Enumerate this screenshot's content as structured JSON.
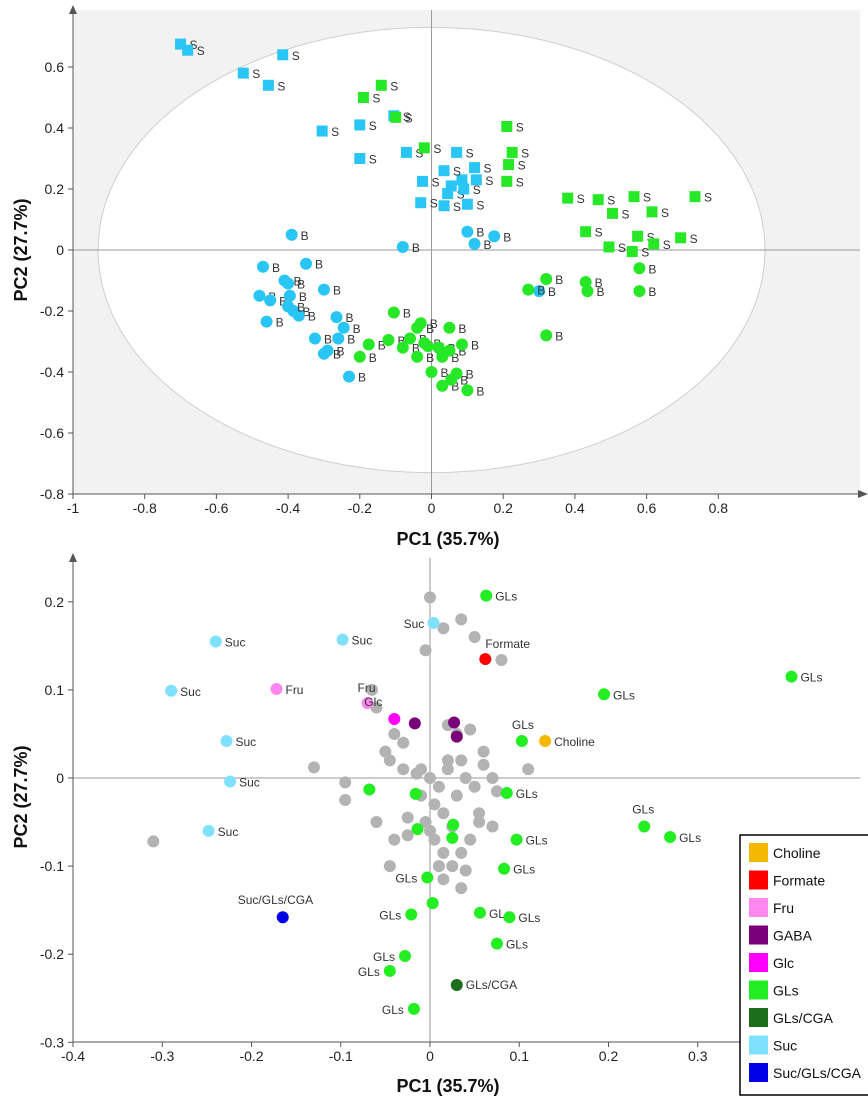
{
  "colors": {
    "S_blue": "#29c6f5",
    "B_blue": "#29c6f5",
    "green": "#27e827",
    "plot1_bg": "#f2f2f2",
    "ellipse_fill": "#ffffff",
    "grey_point": "#b3b3b3",
    "Choline": "#f5b800",
    "Formate": "#ff0000",
    "Fru": "#ff88f0",
    "GABA": "#7a007a",
    "Glc": "#ff00ff",
    "GLs": "#22ee22",
    "GLs/CGA": "#1c6e1c",
    "Suc": "#80e0ff",
    "Suc/GLs/CGA": "#0000e6"
  },
  "chart_data": [
    {
      "type": "scatter",
      "title": "",
      "xlabel": "PC1 (35.7%)",
      "ylabel": "PC2 (27.7%)",
      "xlim": [
        -1,
        1
      ],
      "ylim": [
        -0.8,
        0.8
      ],
      "xticks": [
        "-1",
        "-0.8",
        "-0.6",
        "-0.4",
        "-0.2",
        "0",
        "0.2",
        "0.4",
        "0.6",
        "0.8"
      ],
      "yticks": [
        "0.6",
        "0.4",
        "0.2",
        "0",
        "-0.2",
        "-0.4",
        "-0.6",
        "-0.8"
      ],
      "ellipse": {
        "cx": 0,
        "cy": 0,
        "rx": 0.93,
        "ry": 0.73
      },
      "series": [
        {
          "group": "S-blue",
          "marker": "square",
          "label": "S",
          "points": [
            [
              -0.7,
              0.675
            ],
            [
              -0.68,
              0.655
            ],
            [
              -0.525,
              0.58
            ],
            [
              -0.455,
              0.54
            ],
            [
              -0.415,
              0.64
            ],
            [
              -0.305,
              0.39
            ],
            [
              -0.2,
              0.41
            ],
            [
              -0.2,
              0.3
            ],
            [
              -0.105,
              0.44
            ],
            [
              -0.07,
              0.32
            ],
            [
              -0.025,
              0.225
            ],
            [
              -0.03,
              0.155
            ],
            [
              0.035,
              0.145
            ],
            [
              0.045,
              0.185
            ],
            [
              0.055,
              0.21
            ],
            [
              0.07,
              0.32
            ],
            [
              0.085,
              0.23
            ],
            [
              0.09,
              0.2
            ],
            [
              0.12,
              0.27
            ],
            [
              0.1,
              0.15
            ],
            [
              0.035,
              0.26
            ],
            [
              0.125,
              0.23
            ]
          ]
        },
        {
          "group": "S-green",
          "marker": "square",
          "label": "S",
          "points": [
            [
              -0.19,
              0.5
            ],
            [
              -0.14,
              0.54
            ],
            [
              -0.1,
              0.435
            ],
            [
              -0.02,
              0.335
            ],
            [
              0.21,
              0.405
            ],
            [
              0.215,
              0.28
            ],
            [
              0.225,
              0.32
            ],
            [
              0.21,
              0.225
            ],
            [
              0.38,
              0.17
            ],
            [
              0.43,
              0.06
            ],
            [
              0.465,
              0.165
            ],
            [
              0.505,
              0.12
            ],
            [
              0.495,
              0.01
            ],
            [
              0.565,
              0.175
            ],
            [
              0.56,
              -0.005
            ],
            [
              0.575,
              0.045
            ],
            [
              0.615,
              0.125
            ],
            [
              0.62,
              0.02
            ],
            [
              0.695,
              0.04
            ],
            [
              0.735,
              0.175
            ]
          ]
        },
        {
          "group": "B-blue",
          "marker": "circle",
          "label": "B",
          "points": [
            [
              -0.39,
              0.05
            ],
            [
              -0.47,
              -0.055
            ],
            [
              -0.48,
              -0.15
            ],
            [
              -0.46,
              -0.235
            ],
            [
              -0.45,
              -0.165
            ],
            [
              -0.41,
              -0.1
            ],
            [
              -0.4,
              -0.11
            ],
            [
              -0.395,
              -0.15
            ],
            [
              -0.385,
              -0.2
            ],
            [
              -0.37,
              -0.215
            ],
            [
              -0.4,
              -0.185
            ],
            [
              -0.35,
              -0.045
            ],
            [
              -0.3,
              -0.13
            ],
            [
              -0.325,
              -0.29
            ],
            [
              -0.3,
              -0.34
            ],
            [
              -0.29,
              -0.33
            ],
            [
              -0.265,
              -0.22
            ],
            [
              -0.26,
              -0.29
            ],
            [
              -0.245,
              -0.255
            ],
            [
              -0.23,
              -0.415
            ],
            [
              -0.08,
              0.01
            ],
            [
              0.1,
              0.06
            ],
            [
              0.12,
              0.02
            ],
            [
              0.175,
              0.045
            ],
            [
              0.3,
              -0.135
            ]
          ]
        },
        {
          "group": "B-green",
          "marker": "circle",
          "label": "B",
          "points": [
            [
              -0.2,
              -0.35
            ],
            [
              -0.175,
              -0.31
            ],
            [
              -0.12,
              -0.295
            ],
            [
              -0.105,
              -0.205
            ],
            [
              -0.08,
              -0.32
            ],
            [
              -0.06,
              -0.29
            ],
            [
              -0.04,
              -0.255
            ],
            [
              -0.03,
              -0.24
            ],
            [
              -0.02,
              -0.305
            ],
            [
              -0.04,
              -0.35
            ],
            [
              -0.01,
              -0.315
            ],
            [
              0.0,
              -0.4
            ],
            [
              0.02,
              -0.32
            ],
            [
              0.03,
              -0.35
            ],
            [
              0.05,
              -0.255
            ],
            [
              0.05,
              -0.33
            ],
            [
              0.03,
              -0.445
            ],
            [
              0.055,
              -0.425
            ],
            [
              0.07,
              -0.405
            ],
            [
              0.085,
              -0.31
            ],
            [
              0.1,
              -0.46
            ],
            [
              0.27,
              -0.13
            ],
            [
              0.32,
              -0.095
            ],
            [
              0.32,
              -0.28
            ],
            [
              0.43,
              -0.105
            ],
            [
              0.435,
              -0.135
            ],
            [
              0.58,
              -0.06
            ],
            [
              0.58,
              -0.135
            ]
          ]
        }
      ]
    },
    {
      "type": "scatter",
      "title": "",
      "xlabel": "PC1 (35.7%)",
      "ylabel": "PC2 (27.7%)",
      "xlim": [
        -0.4,
        0.5
      ],
      "ylim": [
        -0.3,
        0.25
      ],
      "xticks": [
        "-0.4",
        "-0.3",
        "-0.2",
        "-0.1",
        "0",
        "0.1",
        "0.2",
        "0.3",
        "0.4"
      ],
      "yticks": [
        "0.2",
        "0.1",
        "0",
        "-0.1",
        "-0.2",
        "-0.3"
      ],
      "legend": {
        "position": "bottom-right",
        "entries": [
          "Choline",
          "Formate",
          "Fru",
          "GABA",
          "Glc",
          "GLs",
          "GLs/CGA",
          "Suc",
          "Suc/GLs/CGA"
        ]
      },
      "grey_points": [
        [
          -0.31,
          -0.072
        ],
        [
          -0.13,
          0.012
        ],
        [
          -0.095,
          -0.005
        ],
        [
          -0.095,
          -0.025
        ],
        [
          -0.065,
          0.1
        ],
        [
          -0.06,
          0.08
        ],
        [
          -0.05,
          0.03
        ],
        [
          -0.045,
          0.02
        ],
        [
          -0.04,
          0.05
        ],
        [
          -0.03,
          0.04
        ],
        [
          -0.03,
          0.01
        ],
        [
          -0.025,
          -0.045
        ],
        [
          -0.025,
          -0.065
        ],
        [
          -0.015,
          0.005
        ],
        [
          0.0,
          0.205
        ],
        [
          -0.005,
          0.145
        ],
        [
          0.015,
          0.17
        ],
        [
          0.035,
          0.18
        ],
        [
          0.05,
          0.16
        ],
        [
          0.02,
          0.06
        ],
        [
          0.03,
          0.05
        ],
        [
          0.045,
          0.055
        ],
        [
          0.08,
          0.134
        ],
        [
          0.06,
          0.03
        ],
        [
          0.06,
          0.015
        ],
        [
          0.07,
          0.0
        ],
        [
          0.075,
          -0.015
        ],
        [
          0.055,
          -0.04
        ],
        [
          0.07,
          -0.055
        ],
        [
          0.11,
          0.01
        ],
        [
          0.0,
          0.0
        ],
        [
          0.01,
          -0.01
        ],
        [
          0.02,
          0.01
        ],
        [
          0.005,
          -0.03
        ],
        [
          -0.01,
          -0.02
        ],
        [
          0.015,
          -0.04
        ],
        [
          0.03,
          -0.02
        ],
        [
          0.04,
          0.0
        ],
        [
          0.025,
          -0.055
        ],
        [
          0.045,
          -0.07
        ],
        [
          0.035,
          -0.085
        ],
        [
          0.005,
          -0.07
        ],
        [
          -0.005,
          -0.05
        ],
        [
          0.01,
          -0.1
        ],
        [
          0.025,
          -0.1
        ],
        [
          0.04,
          -0.105
        ],
        [
          0.015,
          -0.085
        ],
        [
          0.0,
          -0.06
        ],
        [
          0.02,
          0.02
        ],
        [
          -0.01,
          0.01
        ],
        [
          0.035,
          0.02
        ],
        [
          0.05,
          -0.01
        ],
        [
          0.015,
          -0.115
        ],
        [
          -0.045,
          -0.1
        ],
        [
          0.035,
          -0.125
        ],
        [
          -0.06,
          -0.05
        ],
        [
          -0.04,
          -0.07
        ],
        [
          0.055,
          -0.05
        ]
      ],
      "labeled_points": [
        {
          "x": -0.24,
          "y": 0.155,
          "cat": "Suc",
          "text": "Suc"
        },
        {
          "x": -0.29,
          "y": 0.099,
          "cat": "Suc",
          "text": "Suc"
        },
        {
          "x": -0.228,
          "y": 0.042,
          "cat": "Suc",
          "text": "Suc"
        },
        {
          "x": -0.224,
          "y": -0.004,
          "cat": "Suc",
          "text": "Suc"
        },
        {
          "x": -0.248,
          "y": -0.06,
          "cat": "Suc",
          "text": "Suc"
        },
        {
          "x": -0.098,
          "y": 0.157,
          "cat": "Suc",
          "text": "Suc"
        },
        {
          "x": 0.004,
          "y": 0.176,
          "cat": "Suc",
          "text": "Suc"
        },
        {
          "x": -0.172,
          "y": 0.101,
          "cat": "Fru",
          "text": "Fru"
        },
        {
          "x": -0.07,
          "y": 0.085,
          "cat": "Fru",
          "text": "Fru"
        },
        {
          "x": -0.04,
          "y": 0.067,
          "cat": "Glc",
          "text": "Glc"
        },
        {
          "x": -0.017,
          "y": 0.062,
          "cat": "GABA",
          "text": ""
        },
        {
          "x": 0.027,
          "y": 0.063,
          "cat": "GABA",
          "text": ""
        },
        {
          "x": 0.03,
          "y": 0.047,
          "cat": "GABA",
          "text": ""
        },
        {
          "x": 0.062,
          "y": 0.135,
          "cat": "Formate",
          "text": "Formate"
        },
        {
          "x": 0.129,
          "y": 0.042,
          "cat": "Choline",
          "text": "Choline"
        },
        {
          "x": 0.063,
          "y": 0.207,
          "cat": "GLs",
          "text": "GLs"
        },
        {
          "x": 0.195,
          "y": 0.095,
          "cat": "GLs",
          "text": "GLs"
        },
        {
          "x": 0.405,
          "y": 0.115,
          "cat": "GLs",
          "text": "GLs"
        },
        {
          "x": 0.103,
          "y": 0.042,
          "cat": "GLs",
          "text": "GLs"
        },
        {
          "x": 0.086,
          "y": -0.017,
          "cat": "GLs",
          "text": "GLs"
        },
        {
          "x": 0.097,
          "y": -0.07,
          "cat": "GLs",
          "text": "GLs"
        },
        {
          "x": 0.24,
          "y": -0.055,
          "cat": "GLs",
          "text": "GLs"
        },
        {
          "x": 0.269,
          "y": -0.067,
          "cat": "GLs",
          "text": "GLs"
        },
        {
          "x": -0.068,
          "y": -0.013,
          "cat": "GLs",
          "text": ""
        },
        {
          "x": -0.016,
          "y": -0.018,
          "cat": "GLs",
          "text": ""
        },
        {
          "x": -0.014,
          "y": -0.058,
          "cat": "GLs",
          "text": ""
        },
        {
          "x": 0.026,
          "y": -0.053,
          "cat": "GLs",
          "text": ""
        },
        {
          "x": 0.025,
          "y": -0.068,
          "cat": "GLs",
          "text": ""
        },
        {
          "x": 0.083,
          "y": -0.103,
          "cat": "GLs",
          "text": "GLs"
        },
        {
          "x": -0.003,
          "y": -0.113,
          "cat": "GLs",
          "text": "GLs"
        },
        {
          "x": 0.003,
          "y": -0.142,
          "cat": "GLs",
          "text": ""
        },
        {
          "x": -0.021,
          "y": -0.155,
          "cat": "GLs",
          "text": "GLs"
        },
        {
          "x": 0.056,
          "y": -0.153,
          "cat": "GLs",
          "text": "GLs"
        },
        {
          "x": 0.089,
          "y": -0.158,
          "cat": "GLs",
          "text": "GLs"
        },
        {
          "x": 0.075,
          "y": -0.188,
          "cat": "GLs",
          "text": "GLs"
        },
        {
          "x": -0.028,
          "y": -0.202,
          "cat": "GLs",
          "text": "GLs"
        },
        {
          "x": -0.045,
          "y": -0.219,
          "cat": "GLs",
          "text": "GLs"
        },
        {
          "x": -0.018,
          "y": -0.262,
          "cat": "GLs",
          "text": "GLs"
        },
        {
          "x": 0.03,
          "y": -0.235,
          "cat": "GLs/CGA",
          "text": "GLs/CGA"
        },
        {
          "x": -0.165,
          "y": -0.158,
          "cat": "Suc/GLs/CGA",
          "text": "Suc/GLs/CGA"
        }
      ]
    }
  ]
}
